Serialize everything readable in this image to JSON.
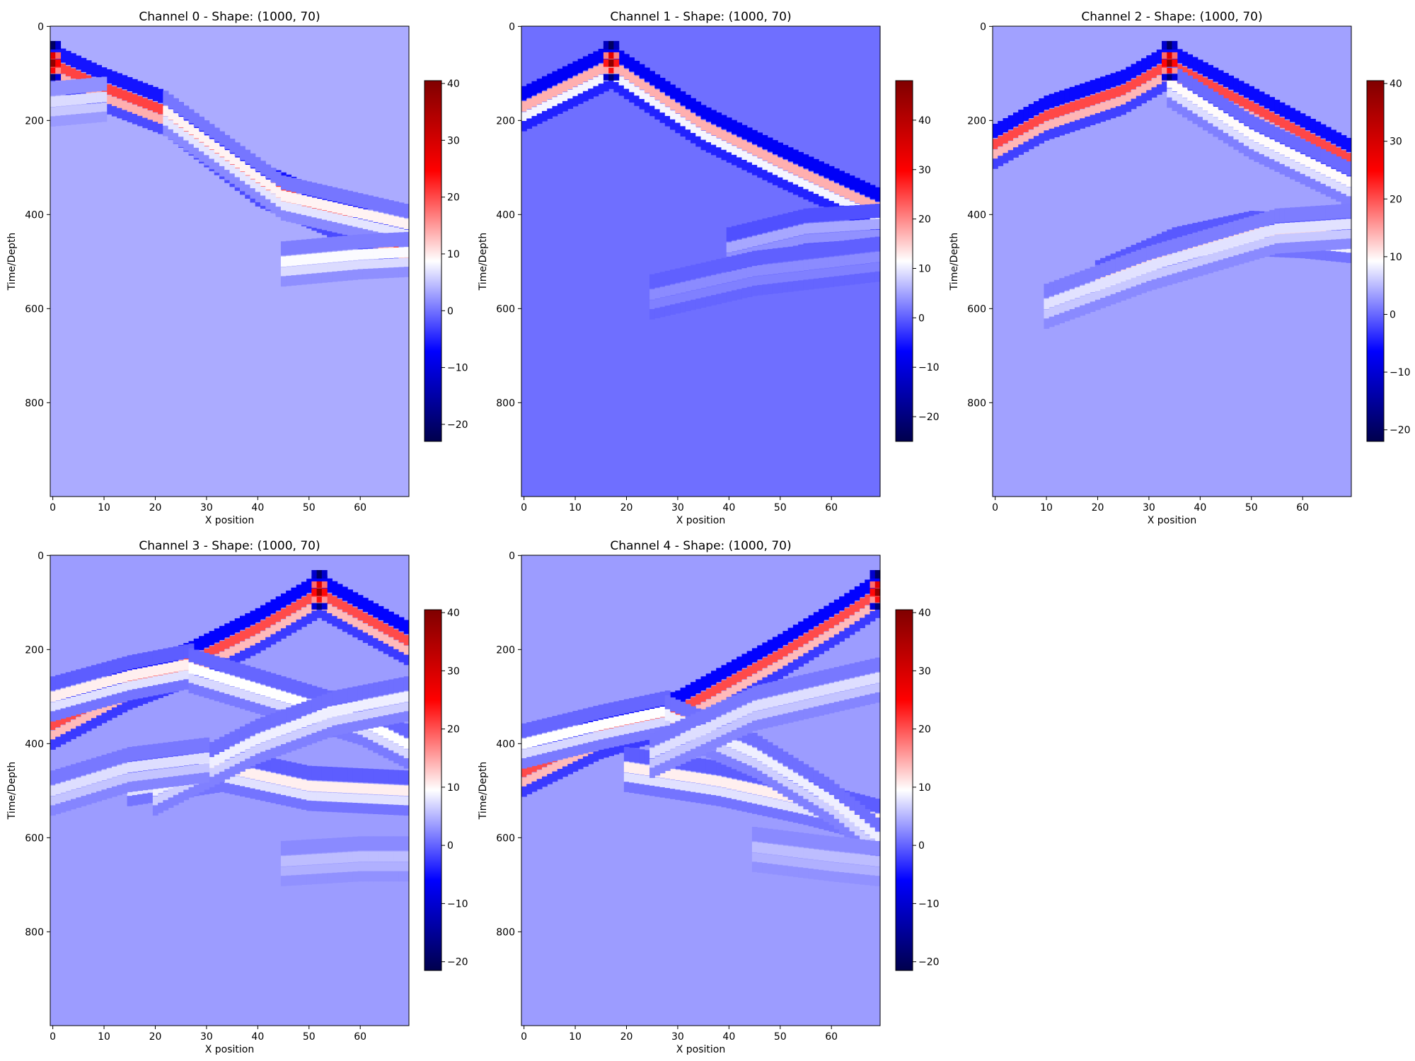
{
  "chart_data": [
    {
      "type": "heatmap",
      "title": "Channel 0 - Shape: (1000, 70)",
      "xlabel": "X position",
      "ylabel": "Time/Depth",
      "shape": [
        1000,
        70
      ],
      "xlim": [
        0,
        69
      ],
      "ylim": [
        999,
        0
      ],
      "xticks": [
        "0",
        "10",
        "20",
        "30",
        "40",
        "50",
        "60"
      ],
      "yticks": [
        "0",
        "200",
        "400",
        "600",
        "800"
      ],
      "colormap": "seismic",
      "colorbar": {
        "vmin": -23,
        "vmax": 40.5,
        "ticks": [
          "40",
          "30",
          "20",
          "10",
          "0",
          "−10",
          "−20"
        ],
        "tick_values": [
          40,
          30,
          20,
          10,
          0,
          -10,
          -20
        ]
      },
      "background_value": 3.5,
      "source_x": 0,
      "wavefronts": [
        {
          "points": [
            [
              0,
              80
            ],
            [
              10,
              130
            ],
            [
              22,
              180
            ],
            [
              40,
              330
            ],
            [
              55,
              400
            ],
            [
              69,
              470
            ]
          ],
          "amplitude": 17
        },
        {
          "points": [
            [
              22,
              180
            ],
            [
              45,
              360
            ],
            [
              69,
              420
            ]
          ],
          "amplitude": 6
        },
        {
          "points": [
            [
              45,
              500
            ],
            [
              60,
              485
            ],
            [
              69,
              480
            ]
          ],
          "amplitude": 5
        },
        {
          "points": [
            [
              0,
              160
            ],
            [
              10,
              150
            ]
          ],
          "amplitude": 3
        }
      ]
    },
    {
      "type": "heatmap",
      "title": "Channel 1 - Shape: (1000, 70)",
      "xlabel": "X position",
      "ylabel": "Time/Depth",
      "shape": [
        1000,
        70
      ],
      "xlim": [
        0,
        69
      ],
      "ylim": [
        999,
        0
      ],
      "xticks": [
        "0",
        "10",
        "20",
        "30",
        "40",
        "50",
        "60"
      ],
      "yticks": [
        "0",
        "200",
        "400",
        "600",
        "800"
      ],
      "colormap": "seismic",
      "colorbar": {
        "vmin": -25,
        "vmax": 48,
        "ticks": [
          "40",
          "30",
          "20",
          "10",
          "0",
          "−10",
          "−20"
        ],
        "tick_values": [
          40,
          30,
          20,
          10,
          0,
          -10,
          -20
        ]
      },
      "background_value": 1.2,
      "source_x": 17,
      "wavefronts": [
        {
          "points": [
            [
              0,
              170
            ],
            [
              17,
              80
            ],
            [
              35,
              210
            ],
            [
              50,
              290
            ],
            [
              69,
              385
            ]
          ],
          "amplitude": 16
        },
        {
          "points": [
            [
              40,
              470
            ],
            [
              55,
              430
            ],
            [
              69,
              420
            ]
          ],
          "amplitude": 4
        },
        {
          "points": [
            [
              25,
              570
            ],
            [
              45,
              520
            ],
            [
              69,
              490
            ]
          ],
          "amplitude": 2
        }
      ]
    },
    {
      "type": "heatmap",
      "title": "Channel 2 - Shape: (1000, 70)",
      "xlabel": "X position",
      "ylabel": "Time/Depth",
      "shape": [
        1000,
        70
      ],
      "xlim": [
        0,
        69
      ],
      "ylim": [
        999,
        0
      ],
      "xticks": [
        "0",
        "10",
        "20",
        "30",
        "40",
        "50",
        "60"
      ],
      "yticks": [
        "0",
        "200",
        "400",
        "600",
        "800"
      ],
      "colormap": "seismic",
      "colorbar": {
        "vmin": -22,
        "vmax": 40.5,
        "ticks": [
          "40",
          "30",
          "20",
          "10",
          "0",
          "−10",
          "−20"
        ],
        "tick_values": [
          40,
          30,
          20,
          10,
          0,
          -10,
          -20
        ]
      },
      "background_value": 3.5,
      "source_x": 34,
      "wavefronts": [
        {
          "points": [
            [
              0,
              250
            ],
            [
              10,
              190
            ],
            [
              25,
              135
            ],
            [
              34,
              80
            ],
            [
              50,
              170
            ],
            [
              69,
              280
            ]
          ],
          "amplitude": 17
        },
        {
          "points": [
            [
              34,
              120
            ],
            [
              50,
              230
            ],
            [
              69,
              330
            ]
          ],
          "amplitude": 6
        },
        {
          "points": [
            [
              20,
              540
            ],
            [
              35,
              470
            ],
            [
              50,
              435
            ],
            [
              60,
              440
            ],
            [
              69,
              450
            ]
          ],
          "amplitude": 8
        },
        {
          "points": [
            [
              10,
              590
            ],
            [
              30,
              510
            ],
            [
              55,
              430
            ],
            [
              69,
              420
            ]
          ],
          "amplitude": 4
        }
      ]
    },
    {
      "type": "heatmap",
      "title": "Channel 3 - Shape: (1000, 70)",
      "xlabel": "X position",
      "ylabel": "Time/Depth",
      "shape": [
        1000,
        70
      ],
      "xlim": [
        0,
        69
      ],
      "ylim": [
        999,
        0
      ],
      "xticks": [
        "0",
        "10",
        "20",
        "30",
        "40",
        "50",
        "60"
      ],
      "yticks": [
        "0",
        "200",
        "400",
        "600",
        "800"
      ],
      "colormap": "seismic",
      "colorbar": {
        "vmin": -21.5,
        "vmax": 40.5,
        "ticks": [
          "40",
          "30",
          "20",
          "10",
          "0",
          "−10",
          "−20"
        ],
        "tick_values": [
          40,
          30,
          20,
          10,
          0,
          -10,
          -20
        ]
      },
      "background_value": 3.5,
      "source_x": 52,
      "wavefronts": [
        {
          "points": [
            [
              0,
              360
            ],
            [
              15,
              275
            ],
            [
              27,
              225
            ],
            [
              40,
              155
            ],
            [
              52,
              80
            ],
            [
              69,
              180
            ]
          ],
          "amplitude": 17
        },
        {
          "points": [
            [
              0,
              300
            ],
            [
              15,
              255
            ],
            [
              27,
              230
            ]
          ],
          "amplitude": 7
        },
        {
          "points": [
            [
              15,
              480
            ],
            [
              33,
              450
            ],
            [
              50,
              490
            ],
            [
              69,
              500
            ]
          ],
          "amplitude": 7
        },
        {
          "points": [
            [
              27,
              240
            ],
            [
              45,
              300
            ],
            [
              60,
              350
            ],
            [
              69,
              400
            ]
          ],
          "amplitude": 6
        },
        {
          "points": [
            [
              20,
              500
            ],
            [
              40,
              390
            ],
            [
              55,
              330
            ],
            [
              69,
              300
            ]
          ],
          "amplitude": 5
        },
        {
          "points": [
            [
              0,
              500
            ],
            [
              15,
              450
            ],
            [
              30,
              430
            ]
          ],
          "amplitude": 4
        },
        {
          "points": [
            [
              45,
              650
            ],
            [
              60,
              640
            ],
            [
              69,
              640
            ]
          ],
          "amplitude": 2
        }
      ]
    },
    {
      "type": "heatmap",
      "title": "Channel 4 - Shape: (1000, 70)",
      "xlabel": "X position",
      "ylabel": "Time/Depth",
      "shape": [
        1000,
        70
      ],
      "xlim": [
        0,
        69
      ],
      "ylim": [
        999,
        0
      ],
      "xticks": [
        "0",
        "10",
        "20",
        "30",
        "40",
        "50",
        "60"
      ],
      "yticks": [
        "0",
        "200",
        "400",
        "600",
        "800"
      ],
      "colormap": "seismic",
      "colorbar": {
        "vmin": -21.5,
        "vmax": 40.5,
        "ticks": [
          "40",
          "30",
          "20",
          "10",
          "0",
          "−10",
          "−20"
        ],
        "tick_values": [
          40,
          30,
          20,
          10,
          0,
          -10,
          -20
        ]
      },
      "background_value": 3.5,
      "source_x": 69,
      "wavefronts": [
        {
          "points": [
            [
              0,
              460
            ],
            [
              15,
              380
            ],
            [
              30,
              330
            ],
            [
              50,
              210
            ],
            [
              62,
              130
            ],
            [
              69,
              80
            ]
          ],
          "amplitude": 17
        },
        {
          "points": [
            [
              0,
              400
            ],
            [
              15,
              360
            ],
            [
              28,
              330
            ]
          ],
          "amplitude": 6
        },
        {
          "points": [
            [
              20,
              450
            ],
            [
              38,
              480
            ],
            [
              55,
              520
            ],
            [
              69,
              560
            ]
          ],
          "amplitude": 7
        },
        {
          "points": [
            [
              28,
              340
            ],
            [
              45,
              420
            ],
            [
              60,
              520
            ],
            [
              69,
              600
            ]
          ],
          "amplitude": 5
        },
        {
          "points": [
            [
              25,
              420
            ],
            [
              45,
              320
            ],
            [
              69,
              260
            ]
          ],
          "amplitude": 4
        },
        {
          "points": [
            [
              45,
              620
            ],
            [
              60,
              640
            ],
            [
              69,
              650
            ]
          ],
          "amplitude": 2
        }
      ]
    }
  ]
}
